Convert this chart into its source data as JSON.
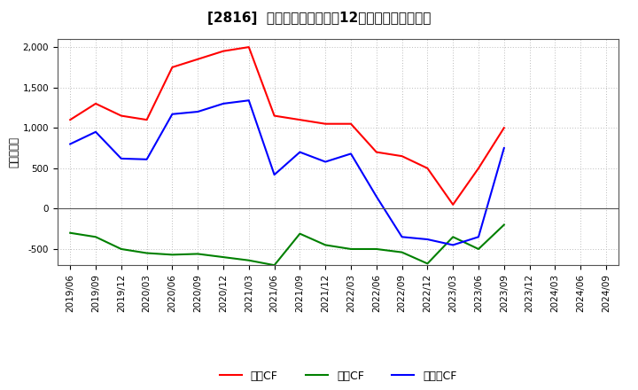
{
  "title": "[2816]  キャッシュフローの12か月移動合計の推移",
  "ylabel": "（百万円）",
  "x_labels": [
    "2019/06",
    "2019/09",
    "2019/12",
    "2020/03",
    "2020/06",
    "2020/09",
    "2020/12",
    "2021/03",
    "2021/06",
    "2021/09",
    "2021/12",
    "2022/03",
    "2022/06",
    "2022/09",
    "2022/12",
    "2023/03",
    "2023/06",
    "2023/09",
    "2023/12",
    "2024/03",
    "2024/06",
    "2024/09"
  ],
  "operating_cf": [
    1100,
    1300,
    1150,
    1100,
    1750,
    1850,
    1950,
    2000,
    1150,
    1100,
    1050,
    1050,
    700,
    650,
    500,
    50,
    500,
    1000,
    null,
    null,
    null,
    null
  ],
  "investing_cf": [
    -300,
    -350,
    -500,
    -550,
    -570,
    -560,
    -600,
    -640,
    -700,
    -310,
    -450,
    -500,
    -500,
    -540,
    -680,
    -350,
    -500,
    -200,
    null,
    null,
    null,
    null
  ],
  "free_cf": [
    800,
    950,
    620,
    610,
    1170,
    1200,
    1300,
    1340,
    420,
    700,
    580,
    680,
    150,
    -350,
    -380,
    -450,
    -350,
    750,
    null,
    null,
    null,
    null
  ],
  "operating_color": "#ff0000",
  "investing_color": "#008000",
  "free_cf_color": "#0000ff",
  "ylim": [
    -700,
    2100
  ],
  "yticks": [
    -500,
    0,
    500,
    1000,
    1500,
    2000
  ],
  "bg_color": "#ffffff",
  "grid_color": "#bbbbbb",
  "title_fontsize": 11,
  "label_fontsize": 8.5,
  "tick_fontsize": 7.5,
  "legend_fontsize": 9
}
